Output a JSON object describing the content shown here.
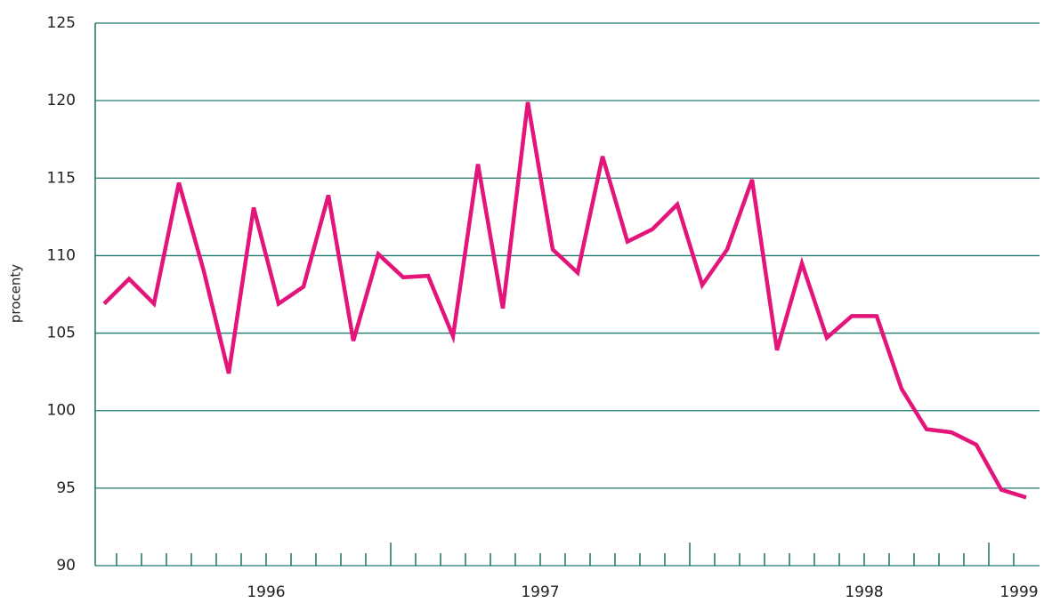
{
  "chart_data": {
    "type": "line",
    "y_label": "procenty",
    "categories": [
      null,
      null,
      null,
      null,
      null,
      null,
      "1996",
      null,
      null,
      null,
      null,
      null,
      null,
      null,
      null,
      null,
      null,
      "1997",
      null,
      null,
      null,
      null,
      null,
      null,
      null,
      null,
      null,
      null,
      null,
      null,
      "1998",
      null,
      null,
      null,
      null,
      null,
      null,
      "1999"
    ],
    "series": [
      {
        "name": "procenty",
        "color": "#e3147a",
        "values": [
          106.9,
          108.5,
          106.9,
          114.7,
          109.0,
          102.4,
          113.1,
          106.9,
          108.0,
          113.9,
          104.5,
          110.1,
          108.6,
          108.7,
          104.8,
          115.9,
          106.6,
          119.9,
          110.4,
          108.9,
          116.4,
          110.9,
          111.7,
          113.3,
          108.1,
          110.4,
          114.9,
          103.9,
          109.5,
          104.7,
          106.1,
          106.1,
          101.4,
          98.8,
          98.6,
          97.8,
          94.9,
          94.4
        ]
      }
    ],
    "ylim": [
      90,
      125
    ],
    "yticks": [
      90,
      95,
      100,
      105,
      110,
      115,
      120,
      125
    ],
    "grid": true
  }
}
